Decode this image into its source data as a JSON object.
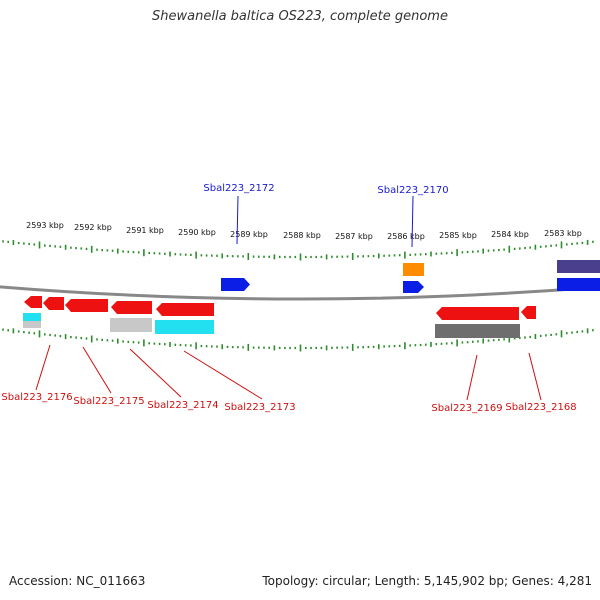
{
  "title": "Shewanella baltica OS223, complete genome",
  "footer": {
    "accession": "Accession: NC_011663",
    "summary": "Topology: circular; Length: 5,145,902 bp; Genes: 4,281"
  },
  "colors": {
    "background": "#ffffff",
    "backbone": "#888888",
    "ticks": "#2e8b2e",
    "forward_gene": "#0a1ee6",
    "reverse_gene": "#ee1111",
    "forward_label": "#1a1acc",
    "reverse_label": "#cc1111",
    "cds_gray_light": "#c8c8c8",
    "cds_gray_dark": "#6e6e6e",
    "cds_cyan": "#22e0f0",
    "cds_orange": "#ff8c00",
    "cds_purple": "#4a3f8c"
  },
  "scale_ticks": [
    "2593 kbp",
    "2592 kbp",
    "2591 kbp",
    "2590 kbp",
    "2589 kbp",
    "2588 kbp",
    "2587 kbp",
    "2586 kbp",
    "2585 kbp",
    "2584 kbp",
    "2583 kbp"
  ],
  "labels": {
    "forward": [
      "Sbal223_2172",
      "Sbal223_2170"
    ],
    "reverse": [
      "Sbal223_2176",
      "Sbal223_2175",
      "Sbal223_2174",
      "Sbal223_2173",
      "Sbal223_2169",
      "Sbal223_2168"
    ]
  }
}
